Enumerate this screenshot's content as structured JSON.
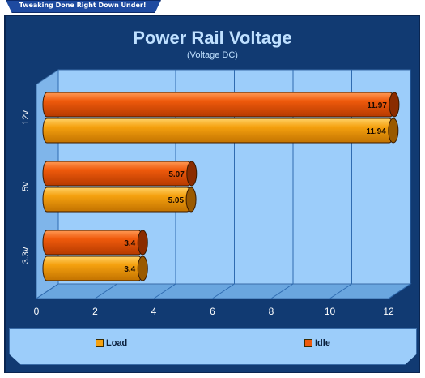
{
  "header": {
    "tagline": "Tweaking Done Right Down Under!"
  },
  "chart_data": {
    "type": "bar",
    "orientation": "horizontal",
    "title": "Power Rail Voltage",
    "subtitle": "(Voltage DC)",
    "categories": [
      "12v",
      "5v",
      "3.3v"
    ],
    "series": [
      {
        "name": "Idle",
        "values": [
          11.97,
          5.07,
          3.4
        ],
        "color": "#ef5a0c"
      },
      {
        "name": "Load",
        "values": [
          11.94,
          5.05,
          3.4
        ],
        "color": "#f5a10f"
      }
    ],
    "xlim": [
      0,
      12
    ],
    "xticks": [
      "0",
      "2",
      "4",
      "6",
      "8",
      "10",
      "12"
    ],
    "grid": true,
    "legend_position": "bottom",
    "colors": {
      "panel": "#113a72",
      "plot_back": "#9ccdfa",
      "plot_floor": "#6aa6df",
      "gridline": "#2f6bb0",
      "title_text": "#bfe0ff"
    }
  }
}
